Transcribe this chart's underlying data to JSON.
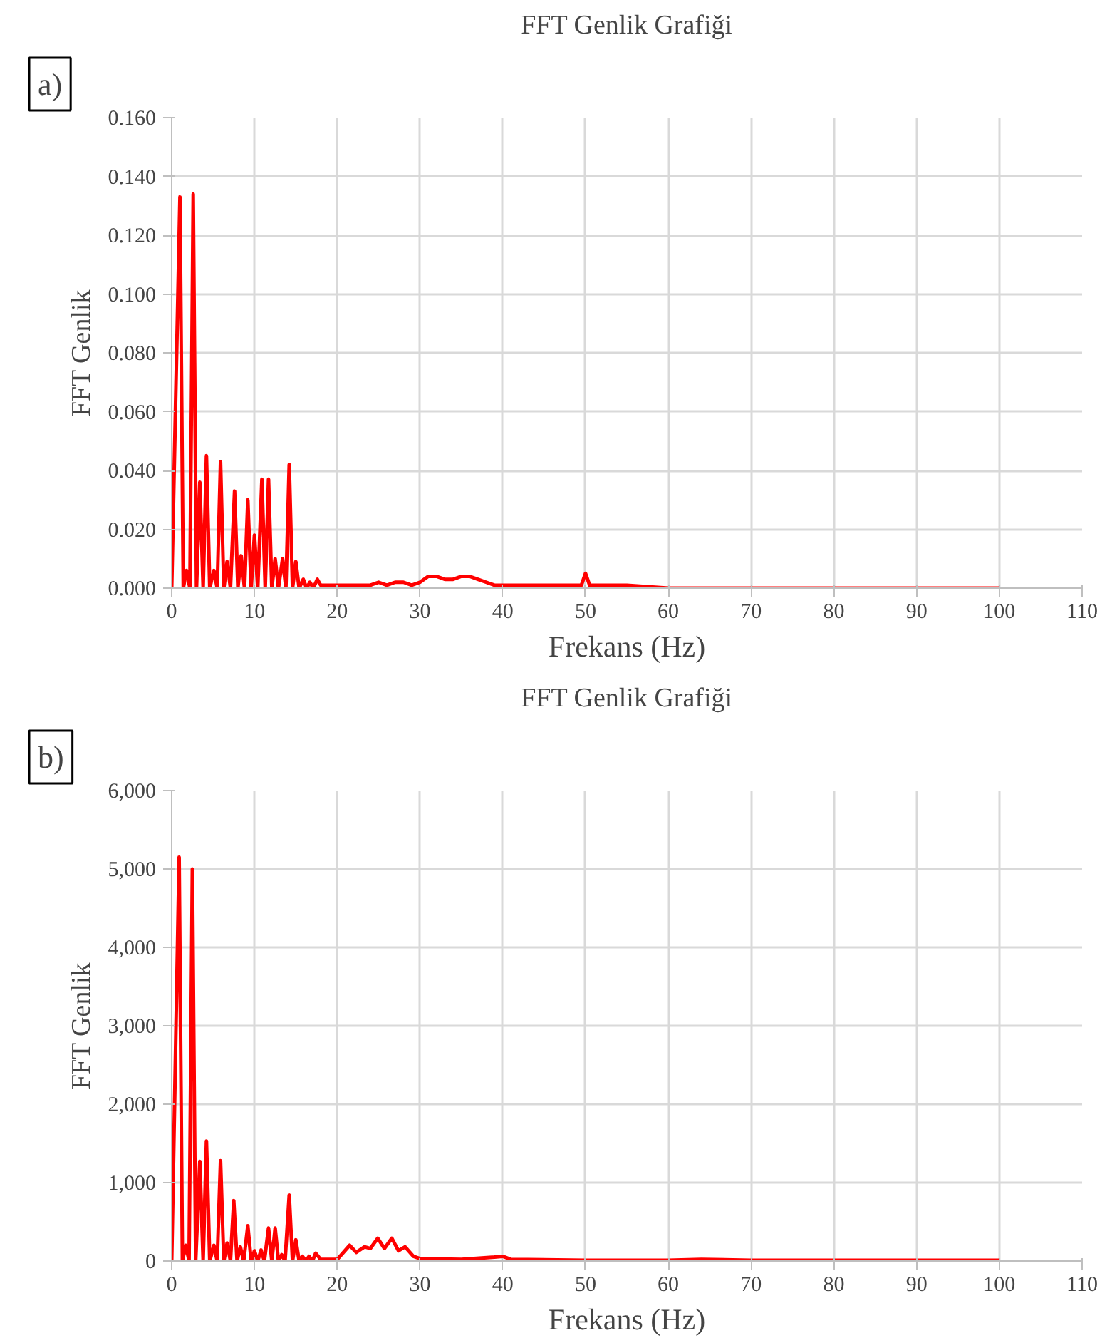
{
  "chart_data": [
    {
      "type": "line",
      "title": "FFT Genlik Grafiği",
      "xlabel": "Frekans (Hz)",
      "ylabel": "FFT Genlik",
      "annotations": [
        "a)"
      ],
      "grid": true,
      "marker": "none",
      "line_style": "solid",
      "xlim": [
        0,
        110
      ],
      "xticks": [
        0,
        10,
        20,
        30,
        40,
        50,
        60,
        70,
        80,
        90,
        100,
        110
      ],
      "ylim": [
        0,
        0.16
      ],
      "yticks": [
        {
          "value": 0,
          "label": "0.000"
        },
        {
          "value": 0.02,
          "label": "0.020"
        },
        {
          "value": 0.04,
          "label": "0.040"
        },
        {
          "value": 0.06,
          "label": "0.060"
        },
        {
          "value": 0.08,
          "label": "0.080"
        },
        {
          "value": 0.1,
          "label": "0.100"
        },
        {
          "value": 0.12,
          "label": "0.120"
        },
        {
          "value": 0.14,
          "label": "0.140"
        },
        {
          "value": 0.16,
          "label": "0.160"
        }
      ],
      "series": [
        {
          "color": "#ff0000",
          "x": [
            0,
            1.0,
            1.4,
            1.8,
            2.2,
            2.6,
            3.0,
            3.4,
            3.8,
            4.2,
            4.6,
            5.1,
            5.5,
            5.9,
            6.3,
            6.7,
            7.1,
            7.6,
            8.0,
            8.4,
            8.8,
            9.2,
            9.6,
            10.0,
            10.4,
            10.9,
            11.3,
            11.7,
            12.1,
            12.5,
            12.9,
            13.4,
            13.8,
            14.2,
            14.6,
            15.0,
            15.4,
            15.9,
            16.3,
            16.7,
            17.1,
            17.6,
            18,
            20,
            22,
            24,
            25,
            26,
            27,
            28,
            29,
            30,
            31,
            32,
            33,
            34,
            35,
            36,
            37,
            38,
            39,
            40,
            45,
            49.5,
            50,
            50.5,
            55,
            60,
            70,
            80,
            90,
            100
          ],
          "values": [
            0,
            0.133,
            0,
            0.006,
            0,
            0.134,
            0,
            0.036,
            0,
            0.045,
            0,
            0.006,
            0,
            0.043,
            0,
            0.009,
            0,
            0.033,
            0,
            0.011,
            0,
            0.03,
            0,
            0.018,
            0,
            0.037,
            0,
            0.037,
            0,
            0.01,
            0,
            0.01,
            0,
            0.042,
            0,
            0.009,
            0,
            0.003,
            0,
            0.002,
            0,
            0.003,
            0.001,
            0.001,
            0.001,
            0.001,
            0.002,
            0.001,
            0.002,
            0.002,
            0.001,
            0.002,
            0.004,
            0.004,
            0.003,
            0.003,
            0.004,
            0.004,
            0.003,
            0.002,
            0.001,
            0.001,
            0.001,
            0.001,
            0.005,
            0.001,
            0.001,
            0,
            0,
            0,
            0,
            0
          ]
        }
      ]
    },
    {
      "type": "line",
      "title": "FFT Genlik Grafiği",
      "xlabel": "Frekans (Hz)",
      "ylabel": "FFT Genlik",
      "annotations": [
        "b)"
      ],
      "grid": true,
      "marker": "none",
      "line_style": "solid",
      "xlim": [
        0,
        110
      ],
      "xticks": [
        0,
        10,
        20,
        30,
        40,
        50,
        60,
        70,
        80,
        90,
        100,
        110
      ],
      "ylim": [
        0,
        6000
      ],
      "yticks": [
        0,
        {
          "value": 1000,
          "label": "1,000"
        },
        {
          "value": 2000,
          "label": "2,000"
        },
        {
          "value": 3000,
          "label": "3,000"
        },
        {
          "value": 4000,
          "label": "4,000"
        },
        {
          "value": 5000,
          "label": "5,000"
        },
        {
          "value": 6000,
          "label": "6,000"
        }
      ],
      "series": [
        {
          "color": "#ff0000",
          "x": [
            0,
            0.9,
            1.3,
            1.7,
            2.1,
            2.5,
            2.9,
            3.4,
            3.8,
            4.2,
            4.6,
            5.1,
            5.5,
            5.9,
            6.3,
            6.7,
            7.1,
            7.5,
            7.9,
            8.3,
            8.7,
            9.2,
            9.6,
            10.0,
            10.4,
            10.8,
            11.2,
            11.7,
            12.1,
            12.5,
            12.9,
            13.3,
            13.7,
            14.2,
            14.6,
            15.0,
            15.4,
            15.8,
            16.2,
            16.6,
            17.0,
            17.4,
            18,
            20,
            21.5,
            22.3,
            23.3,
            24.0,
            24.9,
            25.7,
            26.6,
            27.4,
            28.2,
            29.2,
            30,
            35,
            39,
            40,
            41,
            50,
            60,
            64,
            70,
            80,
            90,
            100
          ],
          "values": [
            0,
            5150,
            0,
            200,
            0,
            5000,
            0,
            1270,
            0,
            1530,
            0,
            200,
            0,
            1280,
            0,
            230,
            0,
            770,
            0,
            180,
            0,
            450,
            0,
            130,
            0,
            140,
            0,
            420,
            0,
            420,
            0,
            80,
            0,
            840,
            0,
            270,
            0,
            60,
            0,
            60,
            0,
            100,
            20,
            20,
            200,
            110,
            180,
            160,
            290,
            160,
            290,
            130,
            180,
            60,
            30,
            20,
            50,
            60,
            20,
            10,
            10,
            20,
            10,
            10,
            10,
            10
          ]
        }
      ]
    }
  ]
}
